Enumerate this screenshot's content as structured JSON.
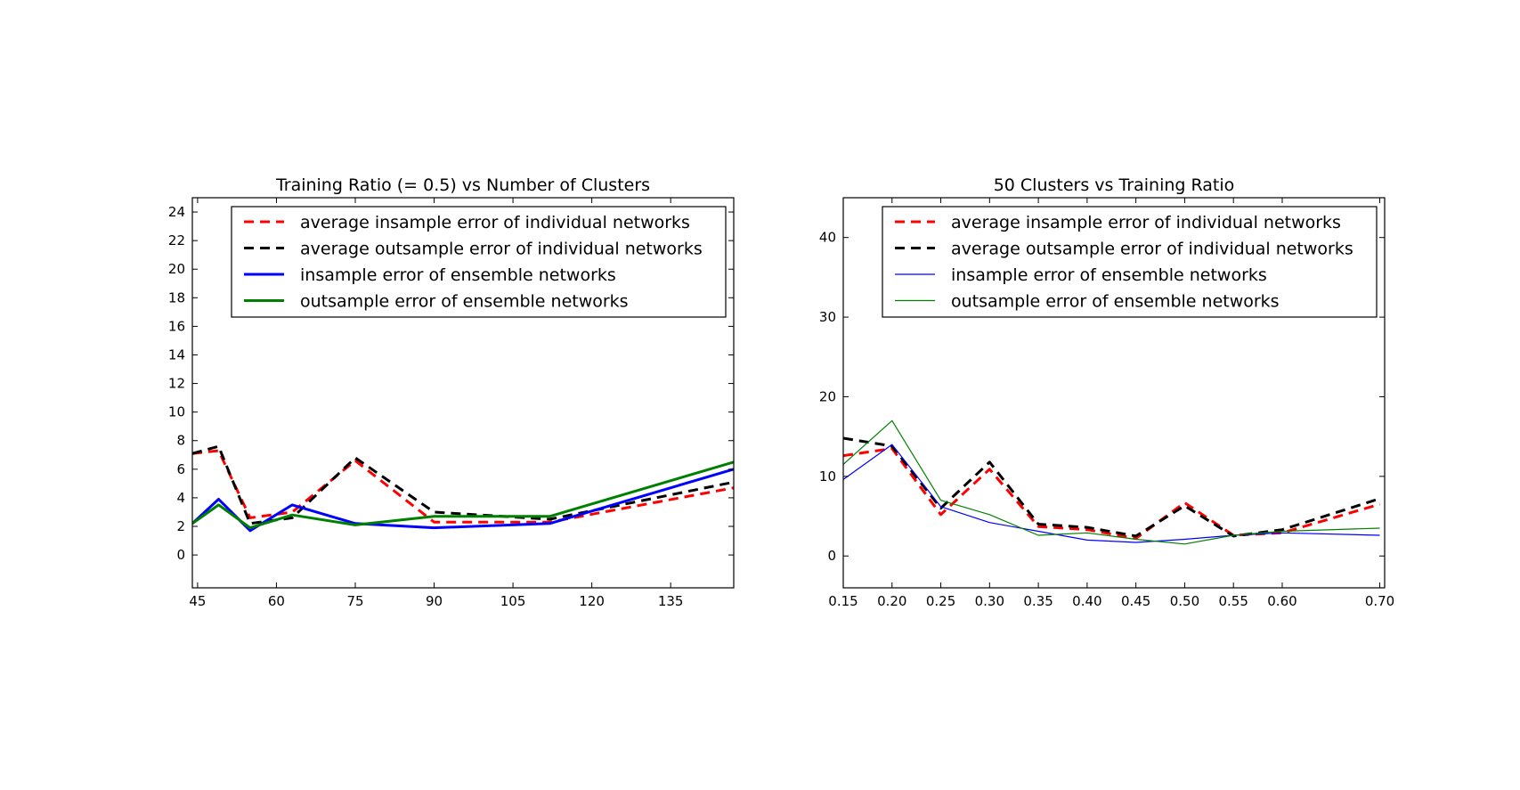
{
  "chart_data": [
    {
      "type": "line",
      "title": "Training Ratio (= 0.5) vs Number of Clusters",
      "xlabel": "",
      "ylabel": "",
      "xlim": [
        44,
        147
      ],
      "ylim": [
        -2.3,
        25
      ],
      "xticks": [
        45,
        60,
        75,
        90,
        105,
        120,
        135
      ],
      "yticks": [
        0,
        2,
        4,
        6,
        8,
        10,
        12,
        14,
        16,
        18,
        20,
        22,
        24
      ],
      "grid": false,
      "legend": "top-right",
      "series": [
        {
          "name": "average insample error of individual networks",
          "color": "#ff0000",
          "style": "dashed",
          "width": 3,
          "x": [
            44,
            49,
            55,
            63,
            75,
            90,
            112,
            147
          ],
          "y": [
            7.1,
            7.3,
            2.6,
            3.0,
            6.6,
            2.3,
            2.3,
            4.7
          ]
        },
        {
          "name": "average outsample error of individual networks",
          "color": "#000000",
          "style": "dashed",
          "width": 3,
          "x": [
            44,
            49,
            55,
            63,
            75,
            90,
            112,
            147
          ],
          "y": [
            7.1,
            7.6,
            2.2,
            2.6,
            6.8,
            3.0,
            2.5,
            5.1
          ]
        },
        {
          "name": "insample error of ensemble networks",
          "color": "#0000ff",
          "style": "solid",
          "width": 3,
          "x": [
            44,
            49,
            55,
            63,
            75,
            90,
            112,
            147
          ],
          "y": [
            2.2,
            3.9,
            1.7,
            3.5,
            2.2,
            1.9,
            2.2,
            6.0
          ]
        },
        {
          "name": "outsample error of ensemble networks",
          "color": "#008000",
          "style": "solid",
          "width": 3,
          "x": [
            44,
            49,
            55,
            63,
            75,
            90,
            112,
            147
          ],
          "y": [
            2.2,
            3.5,
            1.9,
            2.8,
            2.1,
            2.7,
            2.7,
            6.5
          ]
        }
      ]
    },
    {
      "type": "line",
      "title": "50 Clusters vs Training Ratio",
      "xlabel": "",
      "ylabel": "",
      "xlim": [
        0.15,
        0.705
      ],
      "ylim": [
        -4,
        45
      ],
      "xticks": [
        0.15,
        0.2,
        0.25,
        0.3,
        0.35,
        0.4,
        0.45,
        0.5,
        0.55,
        0.6,
        0.7
      ],
      "xticklabels": [
        "0.15",
        "0.20",
        "0.25",
        "0.30",
        "0.35",
        "0.40",
        "0.45",
        "0.50",
        "0.55",
        "0.60",
        "0.70"
      ],
      "yticks": [
        0,
        10,
        20,
        30,
        40
      ],
      "grid": false,
      "legend": "top-right",
      "series": [
        {
          "name": "average insample error of individual networks",
          "color": "#ff0000",
          "style": "dashed",
          "width": 3,
          "x": [
            0.15,
            0.2,
            0.25,
            0.3,
            0.35,
            0.4,
            0.45,
            0.5,
            0.55,
            0.6,
            0.7
          ],
          "y": [
            12.6,
            13.5,
            5.2,
            10.9,
            3.7,
            3.3,
            2.2,
            6.7,
            2.6,
            2.9,
            6.5
          ]
        },
        {
          "name": "average outsample error of individual networks",
          "color": "#000000",
          "style": "dashed",
          "width": 3,
          "x": [
            0.15,
            0.2,
            0.25,
            0.3,
            0.35,
            0.4,
            0.45,
            0.5,
            0.55,
            0.6,
            0.7
          ],
          "y": [
            14.8,
            13.8,
            6.0,
            11.8,
            4.0,
            3.6,
            2.5,
            6.3,
            2.5,
            3.3,
            7.2
          ]
        },
        {
          "name": "insample error of ensemble networks",
          "color": "#0000ff",
          "style": "solid",
          "width": 1.2,
          "x": [
            0.15,
            0.2,
            0.25,
            0.3,
            0.35,
            0.4,
            0.45,
            0.5,
            0.55,
            0.6,
            0.7
          ],
          "y": [
            9.6,
            14.0,
            6.2,
            4.2,
            3.1,
            2.0,
            1.7,
            2.1,
            2.6,
            2.9,
            2.6
          ]
        },
        {
          "name": "outsample error of ensemble networks",
          "color": "#008000",
          "style": "solid",
          "width": 1.2,
          "x": [
            0.15,
            0.2,
            0.25,
            0.3,
            0.35,
            0.4,
            0.45,
            0.5,
            0.55,
            0.6,
            0.7
          ],
          "y": [
            11.5,
            17.0,
            7.0,
            5.2,
            2.6,
            2.9,
            2.1,
            1.5,
            2.6,
            3.1,
            3.5
          ]
        }
      ]
    }
  ]
}
